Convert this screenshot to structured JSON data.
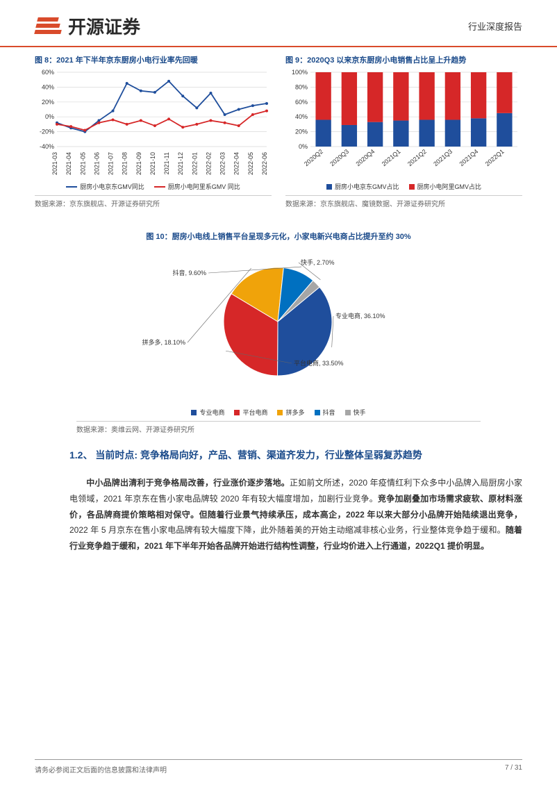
{
  "header": {
    "company": "开源证券",
    "subtitle": "行业深度报告"
  },
  "chart8": {
    "type": "line",
    "title": "图 8：2021 年下半年京东厨房小电行业率先回暖",
    "categories": [
      "2021-03",
      "2021-04",
      "2021-05",
      "2021-06",
      "2021-07",
      "2021-08",
      "2021-09",
      "2021-10",
      "2021-11",
      "2021-12",
      "2022-01",
      "2022-02",
      "2022-03",
      "2022-04",
      "2022-05",
      "2022-06"
    ],
    "series": [
      {
        "name": "厨房小电京东GMV同比",
        "color": "#1f4e9c",
        "values": [
          -8,
          -15,
          -20,
          -5,
          8,
          45,
          35,
          33,
          48,
          28,
          12,
          32,
          3,
          10,
          15,
          18
        ]
      },
      {
        "name": "厨房小电阿里系GMV 同比",
        "color": "#d62728",
        "values": [
          -10,
          -13,
          -18,
          -8,
          -4,
          -10,
          -5,
          -12,
          -3,
          -14,
          -10,
          -5,
          -8,
          -12,
          3,
          8
        ]
      }
    ],
    "ylim": [
      -40,
      60
    ],
    "ytick_step": 20,
    "grid_color": "#d9d9d9",
    "label_fontsize": 9,
    "line_width": 1.8,
    "source": "数据来源：京东旗舰店、开源证券研究所"
  },
  "chart9": {
    "type": "stacked-bar",
    "title": "图 9：2020Q3 以来京东厨房小电销售占比呈上升趋势",
    "categories": [
      "2020Q2",
      "2020Q3",
      "2020Q4",
      "2021Q1",
      "2021Q2",
      "2021Q3",
      "2021Q4",
      "2022Q1"
    ],
    "series": [
      {
        "name": "厨房小电京东GMV占比",
        "color": "#1f4e9c",
        "values": [
          36,
          29,
          33,
          35,
          36,
          36,
          38,
          45
        ]
      },
      {
        "name": "厨房小电阿里GMV占比",
        "color": "#d62728",
        "values": [
          64,
          71,
          67,
          65,
          64,
          64,
          62,
          55
        ]
      }
    ],
    "ylim": [
      0,
      100
    ],
    "ytick_step": 20,
    "grid_color": "#d9d9d9",
    "label_fontsize": 9,
    "bar_width": 0.6,
    "source": "数据来源：京东旗舰店、魔镜数据、开源证券研究所"
  },
  "chart10": {
    "type": "pie",
    "title": "图 10：厨房小电线上销售平台呈现多元化，小家电新兴电商占比提升至约 30%",
    "slices": [
      {
        "name": "专业电商",
        "value": 36.1,
        "color": "#1f4e9c",
        "label": "专业电商, 36.10%"
      },
      {
        "name": "平台电商",
        "value": 33.5,
        "color": "#d62728",
        "label": "平台电商, 33.50%"
      },
      {
        "name": "拼多多",
        "value": 18.1,
        "color": "#f0a30a",
        "label": "拼多多, 18.10%"
      },
      {
        "name": "抖音",
        "value": 9.6,
        "color": "#0070c0",
        "label": "抖音, 9.60%"
      },
      {
        "name": "快手",
        "value": 2.7,
        "color": "#a6a6a6",
        "label": "快手, 2.70%"
      }
    ],
    "label_fontsize": 9,
    "source": "数据来源：奥维云网、开源证券研究所"
  },
  "section": {
    "heading": "1.2、 当前时点: 竞争格局向好，产品、营销、渠道齐发力，行业整体呈弱复苏趋势",
    "para_bold_1": "中小品牌出清利于竞争格局改善，行业涨价逐步落地。",
    "para_plain_1": "正如前文所述，2020 年疫情红利下众多中小品牌入局厨房小家电领域，2021 年京东在售小家电品牌较 2020 年有较大幅度增加，加剧行业竞争。",
    "para_bold_2": "竞争加剧叠加市场需求疲软、原材料涨价，各品牌商提价策略相对保守。但随着行业景气持续承压，成本高企，2022 年以来大部分小品牌开始陆续退出竞争，",
    "para_plain_2": "2022 年 5 月京东在售小家电品牌有较大幅度下降，此外随着美的开始主动缩减非核心业务，行业整体竞争趋于缓和。",
    "para_bold_3": "随着行业竞争趋于缓和，2021 年下半年开始各品牌开始进行结构性调整，行业均价进入上行通道，2022Q1 提价明显。"
  },
  "footer": {
    "disclaimer": "请务必参阅正文后面的信息披露和法律声明",
    "page": "7 / 31"
  }
}
